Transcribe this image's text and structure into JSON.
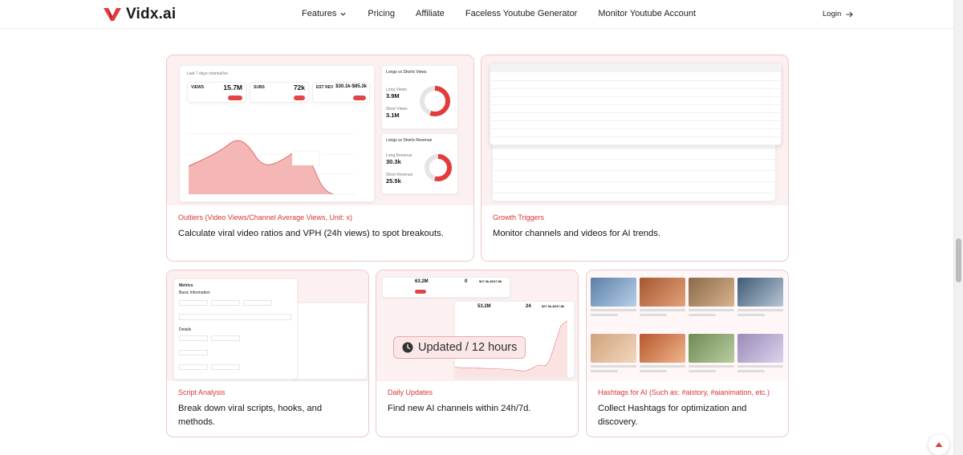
{
  "brand": {
    "name": "Vidx.ai",
    "accent": "#e23b3b"
  },
  "nav": {
    "items": [
      {
        "label": "Features",
        "has_dropdown": true
      },
      {
        "label": "Pricing"
      },
      {
        "label": "Affiliate"
      },
      {
        "label": "Faceless Youtube Generator"
      },
      {
        "label": "Monitor Youtube Account"
      }
    ],
    "login": "Login"
  },
  "cards": [
    {
      "tag": "Outliers (Video Views/Channel Average Views, Unit: x)",
      "desc": "Calculate viral video ratios and VPH (24h views) to spot breakouts."
    },
    {
      "tag": "Growth Triggers",
      "desc": "Monitor channels and videos for AI trends."
    },
    {
      "tag": "Script Analysis",
      "desc": "Break down viral scripts, hooks, and methods."
    },
    {
      "tag": "Daily Updates",
      "desc": "Find new AI channels within 24h/7d."
    },
    {
      "tag": "Hashtags for AI (Such as: #aistory, #aianimation, etc.)",
      "desc": "Collect Hashtags for optimization and discovery."
    }
  ],
  "outliers_preview": {
    "period": "Last 7 days channel/vs",
    "views_label": "VIEWS",
    "views_value": "15.7M",
    "subs_label": "SUBS",
    "subs_value": "72k",
    "rev_label": "EST REV",
    "rev_value": "$30.1k-$85.3k",
    "long_short_views_title": "Longs vs Shorts Views",
    "long_views_label": "Long Views",
    "long_views_value": "3.9M",
    "short_views_label": "Short Views",
    "short_views_value": "3.1M",
    "revenue_title": "Longs vs Shorts Revenue",
    "long_rev_label": "Long Revenue",
    "long_rev_value": "30.3k",
    "short_rev_label": "Short Revenue",
    "short_rev_value": "25.5k"
  },
  "daily_preview": {
    "views_value": "63.2M",
    "subs_value": "0",
    "rev_value": "$27.3k-$247.8k",
    "views_value_2": "53.2M",
    "subs_value_2": "24",
    "rev_value_2": "$27.3k-$247.8k",
    "badge": "Updated / 12 hours"
  },
  "script_preview": {
    "title": "Metrics",
    "section1": "Basic Information",
    "section2": "Details"
  },
  "hashtag_thumb_colors": [
    "#5b7fa8",
    "#a5572f",
    "#8a6a4a",
    "#3e5b77",
    "#d0a27a",
    "#b6572d",
    "#6d8a53",
    "#9a8bb8"
  ]
}
